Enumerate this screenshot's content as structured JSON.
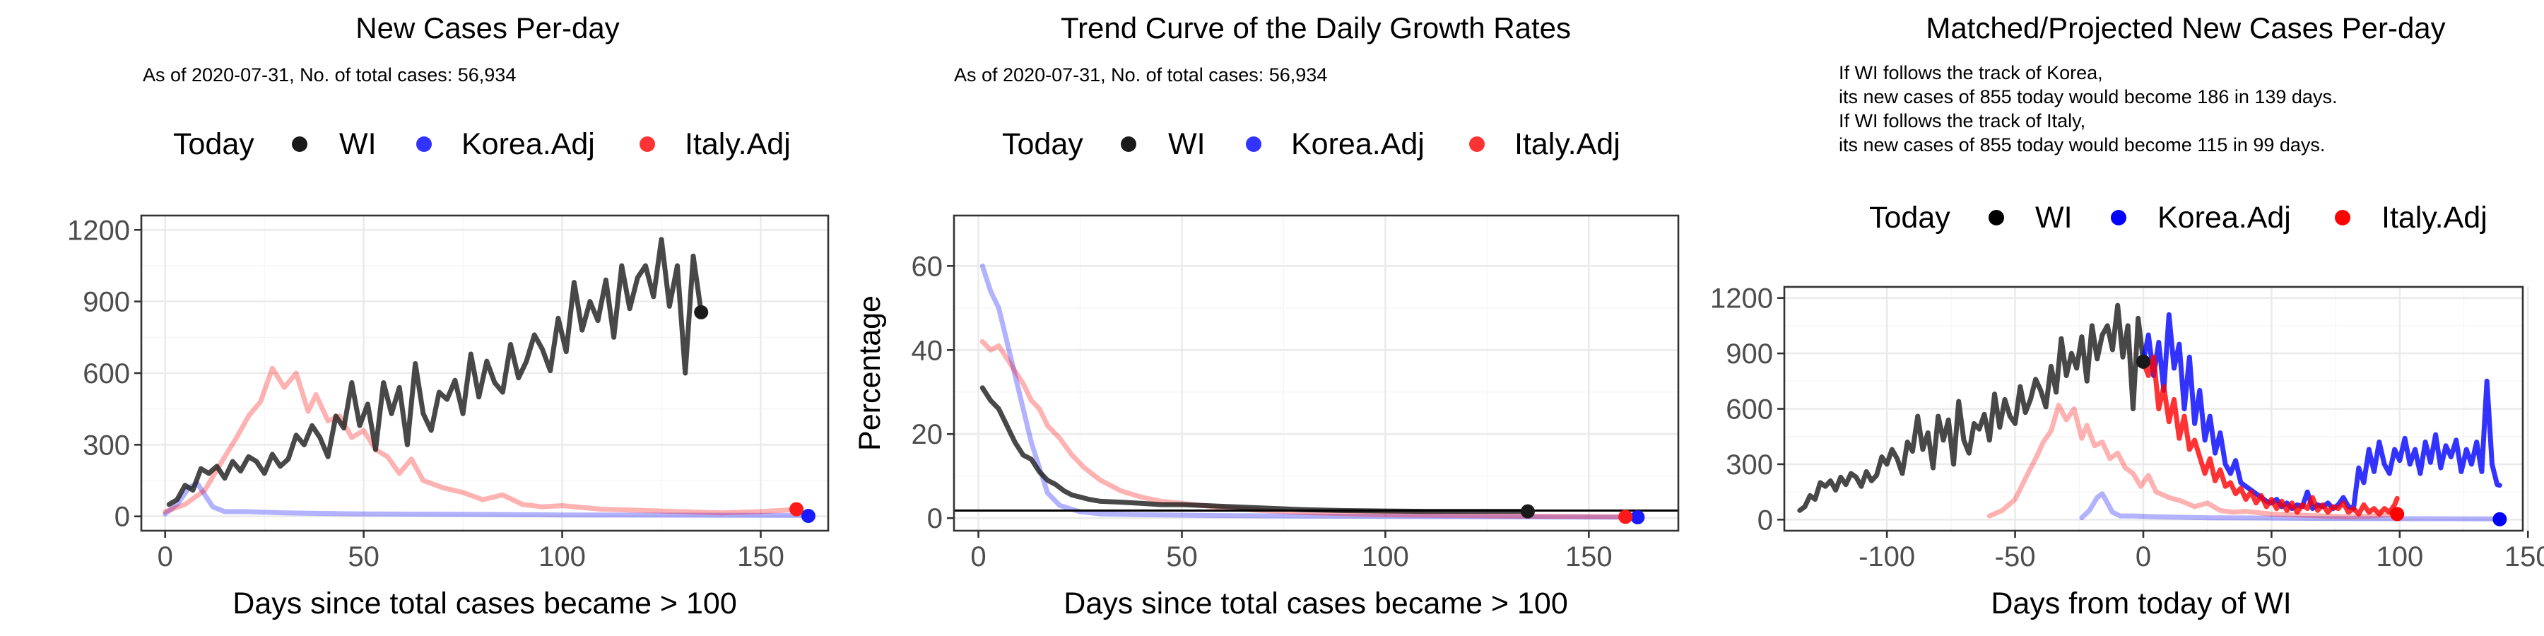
{
  "chart_data": [
    {
      "type": "line",
      "title": "New Cases Per-day",
      "subtitle": "As of 2020-07-31, No. of total cases: 56,934",
      "xlabel": "Days since total cases became > 100",
      "ylabel": "",
      "xlim": [
        -6,
        167
      ],
      "ylim": [
        -60,
        1260
      ],
      "xticks": [
        0,
        50,
        100,
        150
      ],
      "yticks": [
        0,
        300,
        600,
        900,
        1200
      ],
      "grid": true,
      "legend": {
        "title": "Today",
        "entries": [
          "WI",
          "Korea.Adj",
          "Italy.Adj"
        ],
        "position": "top"
      },
      "series": [
        {
          "name": "WI",
          "color": "#1a1a1a",
          "x": [
            1,
            3,
            5,
            7,
            9,
            11,
            13,
            15,
            17,
            19,
            21,
            23,
            25,
            27,
            29,
            31,
            33,
            35,
            37,
            39,
            41,
            43,
            45,
            47,
            49,
            51,
            53,
            55,
            57,
            59,
            61,
            63,
            65,
            67,
            69,
            71,
            73,
            75,
            77,
            79,
            81,
            83,
            85,
            87,
            89,
            91,
            93,
            95,
            97,
            99,
            101,
            103,
            105,
            107,
            109,
            111,
            113,
            115,
            117,
            119,
            121,
            123,
            125,
            127,
            129,
            131,
            133,
            135
          ],
          "y": [
            50,
            70,
            130,
            110,
            200,
            180,
            210,
            160,
            230,
            190,
            250,
            230,
            180,
            260,
            210,
            240,
            340,
            300,
            380,
            330,
            250,
            420,
            370,
            560,
            380,
            470,
            280,
            560,
            430,
            540,
            300,
            640,
            430,
            360,
            520,
            490,
            570,
            430,
            680,
            500,
            650,
            560,
            520,
            720,
            580,
            650,
            760,
            700,
            610,
            830,
            690,
            980,
            780,
            900,
            820,
            990,
            750,
            1050,
            870,
            1000,
            1050,
            920,
            1160,
            880,
            1050,
            600,
            1090,
            855
          ]
        },
        {
          "name": "Korea.Adj",
          "color": "#0000ff",
          "opacity": 0.3,
          "x": [
            0,
            3,
            6,
            8,
            10,
            12,
            15,
            20,
            30,
            50,
            80,
            100,
            130,
            160,
            162
          ],
          "y": [
            10,
            50,
            120,
            140,
            90,
            40,
            20,
            20,
            15,
            10,
            8,
            6,
            5,
            4,
            0
          ]
        },
        {
          "name": "Italy.Adj",
          "color": "#ff0000",
          "opacity": 0.3,
          "x": [
            0,
            5,
            10,
            15,
            18,
            21,
            24,
            27,
            30,
            33,
            36,
            38,
            41,
            44,
            47,
            50,
            53,
            56,
            59,
            62,
            65,
            70,
            75,
            80,
            85,
            90,
            95,
            100,
            110,
            120,
            130,
            140,
            150,
            160
          ],
          "y": [
            20,
            50,
            110,
            250,
            330,
            420,
            480,
            620,
            540,
            600,
            440,
            510,
            400,
            420,
            330,
            360,
            280,
            250,
            180,
            240,
            150,
            120,
            100,
            70,
            90,
            50,
            40,
            45,
            30,
            25,
            20,
            15,
            20,
            30
          ]
        }
      ],
      "today_points": [
        {
          "name": "WI",
          "x": 135,
          "y": 855,
          "color": "#1a1a1a"
        },
        {
          "name": "Korea.Adj",
          "x": 162,
          "y": 2,
          "color": "#1a1aff"
        },
        {
          "name": "Italy.Adj",
          "x": 159,
          "y": 30,
          "color": "#ff1a1a"
        }
      ]
    },
    {
      "type": "line",
      "title": "Trend Curve of the Daily Growth Rates",
      "subtitle": "As of 2020-07-31, No. of total cases: 56,934",
      "xlabel": "Days since total cases became > 100",
      "ylabel": "Percentage",
      "xlim": [
        -6,
        172
      ],
      "ylim": [
        -3,
        72
      ],
      "xticks": [
        0,
        50,
        100,
        150
      ],
      "yticks": [
        0,
        20,
        40,
        60
      ],
      "hline": 1.8,
      "grid": true,
      "legend": {
        "title": "Today",
        "entries": [
          "WI",
          "Korea.Adj",
          "Italy.Adj"
        ],
        "position": "top"
      },
      "series": [
        {
          "name": "WI",
          "color": "#1a1a1a",
          "x": [
            1,
            3,
            5,
            7,
            9,
            11,
            13,
            15,
            17,
            19,
            21,
            23,
            25,
            27,
            30,
            35,
            40,
            45,
            50,
            55,
            60,
            70,
            80,
            90,
            100,
            110,
            120,
            130,
            135
          ],
          "y": [
            31,
            28,
            26,
            22,
            18,
            15,
            14,
            11,
            9,
            8,
            6.5,
            5.5,
            5,
            4.5,
            4,
            3.8,
            3.5,
            3.2,
            3.2,
            3,
            2.8,
            2.4,
            2,
            1.8,
            1.7,
            1.6,
            1.6,
            1.6,
            1.6
          ]
        },
        {
          "name": "Korea.Adj",
          "color": "#0000ff",
          "opacity": 0.3,
          "x": [
            1,
            3,
            5,
            7,
            9,
            11,
            13,
            15,
            17,
            20,
            25,
            30,
            40,
            60,
            80,
            100,
            130,
            162
          ],
          "y": [
            60,
            54,
            50,
            42,
            34,
            26,
            18,
            12,
            6,
            3,
            1.5,
            1,
            0.8,
            0.6,
            0.5,
            0.4,
            0.3,
            0.2
          ]
        },
        {
          "name": "Italy.Adj",
          "color": "#ff0000",
          "opacity": 0.3,
          "x": [
            1,
            3,
            5,
            7,
            9,
            11,
            13,
            15,
            17,
            20,
            23,
            26,
            30,
            35,
            40,
            45,
            50,
            60,
            70,
            80,
            100,
            130,
            160
          ],
          "y": [
            42,
            40,
            41,
            38,
            35,
            32,
            28,
            26,
            22,
            19,
            15,
            12,
            9,
            6.5,
            5,
            4,
            3.5,
            2.5,
            1.8,
            1.3,
            0.8,
            0.5,
            0.3
          ]
        }
      ],
      "today_points": [
        {
          "name": "WI",
          "x": 135,
          "y": 1.6,
          "color": "#1a1a1a"
        },
        {
          "name": "Korea.Adj",
          "x": 162,
          "y": 0.2,
          "color": "#1a1aff"
        },
        {
          "name": "Italy.Adj",
          "x": 159,
          "y": 0.3,
          "color": "#ff1a1a"
        }
      ]
    },
    {
      "type": "line",
      "title": "Matched/Projected New Cases Per-day",
      "subtitle_lines": [
        "If WI follows the track of Korea,",
        "its new cases of 855 today would become 186 in 139 days.",
        "If WI follows the track of Italy,",
        "its new cases of 855 today would become 115 in 99 days."
      ],
      "xlabel": "Days from today of WI",
      "ylabel": "",
      "xlim": [
        -140,
        148
      ],
      "ylim": [
        -60,
        1260
      ],
      "xticks": [
        -100,
        -50,
        0,
        50,
        100,
        150
      ],
      "yticks": [
        0,
        300,
        600,
        900,
        1200
      ],
      "grid": true,
      "legend": {
        "title": "Today",
        "entries": [
          "WI",
          "Korea.Adj",
          "Italy.Adj"
        ],
        "position": "top"
      },
      "series": [
        {
          "name": "WI",
          "color": "#1a1a1a",
          "x": [
            -134,
            -132,
            -130,
            -128,
            -126,
            -124,
            -122,
            -120,
            -118,
            -116,
            -114,
            -112,
            -110,
            -108,
            -106,
            -104,
            -102,
            -100,
            -98,
            -96,
            -94,
            -92,
            -90,
            -88,
            -86,
            -84,
            -82,
            -80,
            -78,
            -76,
            -74,
            -72,
            -70,
            -68,
            -66,
            -64,
            -62,
            -60,
            -58,
            -56,
            -54,
            -52,
            -50,
            -48,
            -46,
            -44,
            -42,
            -40,
            -38,
            -36,
            -34,
            -32,
            -30,
            -28,
            -26,
            -24,
            -22,
            -20,
            -18,
            -16,
            -14,
            -12,
            -10,
            -8,
            -6,
            -4,
            -2,
            0
          ],
          "y": [
            50,
            70,
            130,
            110,
            200,
            180,
            210,
            160,
            230,
            190,
            250,
            230,
            180,
            260,
            210,
            240,
            340,
            300,
            380,
            330,
            250,
            420,
            370,
            560,
            380,
            470,
            280,
            560,
            430,
            540,
            300,
            640,
            430,
            360,
            520,
            490,
            570,
            430,
            680,
            500,
            650,
            560,
            520,
            720,
            580,
            650,
            760,
            700,
            610,
            830,
            690,
            980,
            780,
            900,
            820,
            990,
            750,
            1050,
            870,
            1000,
            1050,
            920,
            1160,
            880,
            1050,
            600,
            1090,
            855
          ]
        },
        {
          "name": "Korea.Adj (matched)",
          "color": "#0000ff",
          "opacity": 0.3,
          "x": [
            -24,
            -21,
            -18,
            -16,
            -14,
            -12,
            -9,
            -4,
            6,
            26,
            56,
            76,
            106,
            136,
            138
          ],
          "y": [
            10,
            50,
            120,
            140,
            90,
            40,
            20,
            20,
            15,
            10,
            8,
            6,
            5,
            4,
            0
          ]
        },
        {
          "name": "Italy.Adj (matched)",
          "color": "#ff0000",
          "opacity": 0.3,
          "x": [
            -60,
            -55,
            -50,
            -45,
            -42,
            -39,
            -36,
            -33,
            -30,
            -27,
            -24,
            -22,
            -19,
            -16,
            -13,
            -10,
            -7,
            -4,
            -1,
            2,
            5,
            10,
            15,
            20,
            25,
            30,
            35,
            40,
            50,
            60,
            70,
            80,
            90,
            100
          ],
          "y": [
            20,
            50,
            110,
            250,
            330,
            420,
            480,
            620,
            540,
            600,
            440,
            510,
            400,
            420,
            330,
            360,
            280,
            250,
            180,
            240,
            150,
            120,
            100,
            70,
            90,
            50,
            40,
            45,
            30,
            25,
            20,
            15,
            20,
            30
          ]
        },
        {
          "name": "Korea.Adj (projected)",
          "color": "#0000ff",
          "x": [
            0,
            2,
            4,
            6,
            8,
            10,
            12,
            14,
            16,
            18,
            20,
            22,
            24,
            26,
            28,
            30,
            32,
            34,
            36,
            38,
            40,
            42,
            44,
            46,
            48,
            50,
            52,
            54,
            56,
            58,
            60,
            62,
            64,
            66,
            68,
            70,
            72,
            74,
            76,
            78,
            80,
            82,
            84,
            86,
            88,
            90,
            92,
            94,
            96,
            98,
            100,
            102,
            104,
            106,
            108,
            110,
            112,
            114,
            116,
            118,
            120,
            122,
            124,
            126,
            128,
            130,
            132,
            134,
            136,
            138,
            139
          ],
          "y": [
            855,
            1000,
            780,
            960,
            700,
            1110,
            820,
            950,
            600,
            880,
            520,
            700,
            430,
            560,
            360,
            470,
            300,
            250,
            320,
            200,
            180,
            160,
            140,
            120,
            100,
            90,
            110,
            70,
            90,
            60,
            80,
            70,
            150,
            60,
            80,
            70,
            90,
            60,
            80,
            120,
            70,
            60,
            280,
            200,
            380,
            260,
            420,
            300,
            250,
            380,
            320,
            440,
            300,
            380,
            250,
            420,
            310,
            460,
            280,
            400,
            340,
            430,
            260,
            380,
            300,
            420,
            260,
            750,
            300,
            190,
            186
          ]
        },
        {
          "name": "Italy.Adj (projected)",
          "color": "#ff0000",
          "x": [
            0,
            2,
            4,
            6,
            8,
            10,
            12,
            14,
            16,
            18,
            20,
            22,
            24,
            26,
            28,
            30,
            32,
            34,
            36,
            38,
            40,
            42,
            44,
            46,
            48,
            50,
            52,
            54,
            56,
            58,
            60,
            62,
            64,
            66,
            68,
            70,
            72,
            74,
            76,
            78,
            80,
            82,
            84,
            86,
            88,
            90,
            92,
            94,
            96,
            98,
            99
          ],
          "y": [
            855,
            780,
            880,
            600,
            720,
            530,
            650,
            440,
            560,
            380,
            430,
            340,
            250,
            330,
            210,
            270,
            180,
            200,
            140,
            170,
            110,
            150,
            90,
            130,
            70,
            110,
            60,
            100,
            50,
            90,
            40,
            80,
            60,
            120,
            50,
            80,
            40,
            70,
            60,
            90,
            40,
            60,
            30,
            80,
            40,
            60,
            30,
            60,
            40,
            80,
            115
          ]
        }
      ],
      "today_points": [
        {
          "name": "WI",
          "x": 0,
          "y": 855,
          "color": "#1a1a1a"
        },
        {
          "name": "Korea.Adj",
          "x": 139,
          "y": 2,
          "color": "#0000ff"
        },
        {
          "name": "Italy.Adj",
          "x": 99,
          "y": 30,
          "color": "#ff0000"
        }
      ]
    }
  ]
}
